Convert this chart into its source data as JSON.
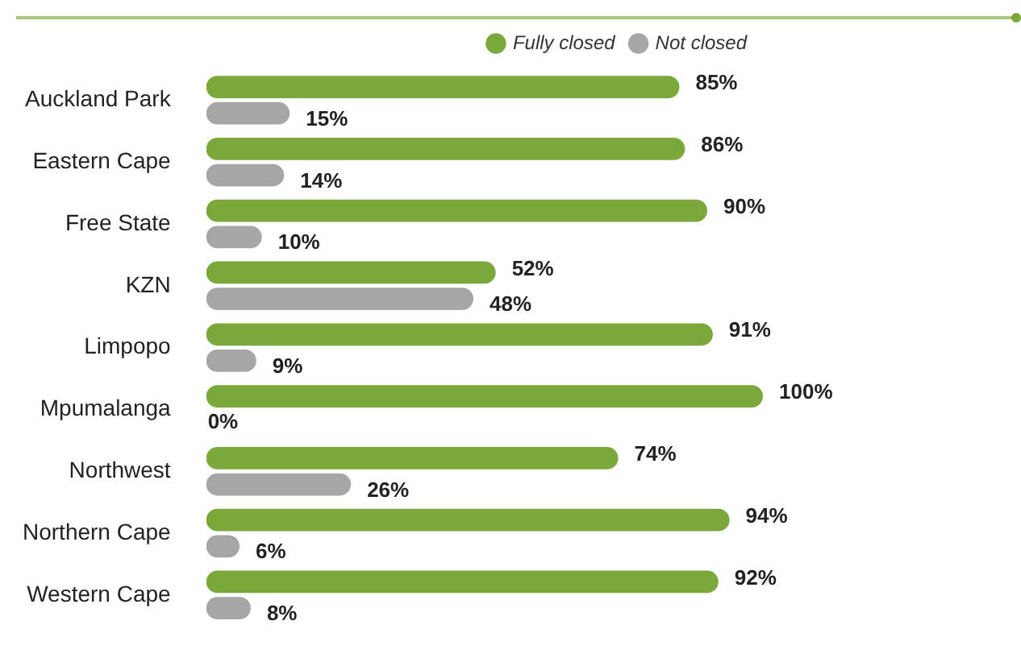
{
  "chart_data": {
    "type": "bar",
    "orientation": "horizontal",
    "categories": [
      "Auckland Park",
      "Eastern Cape",
      "Free State",
      "KZN",
      "Limpopo",
      "Mpumalanga",
      "Northwest",
      "Northern Cape",
      "Western Cape"
    ],
    "series": [
      {
        "name": "Fully closed",
        "color": "#7aa83a",
        "values": [
          85,
          86,
          90,
          52,
          91,
          100,
          74,
          94,
          92
        ],
        "value_labels": [
          "85%",
          "86%",
          "90%",
          "52%",
          "91%",
          "100%",
          "74%",
          "94%",
          "92%"
        ]
      },
      {
        "name": "Not closed",
        "color": "#a6a6a6",
        "values": [
          15,
          14,
          10,
          48,
          9,
          0,
          26,
          6,
          8
        ],
        "value_labels": [
          "15%",
          "14%",
          "10%",
          "48%",
          "9%",
          "0%",
          "26%",
          "6%",
          "8%"
        ]
      }
    ],
    "legend": "top right",
    "grid": false,
    "tick_labels": "y"
  }
}
